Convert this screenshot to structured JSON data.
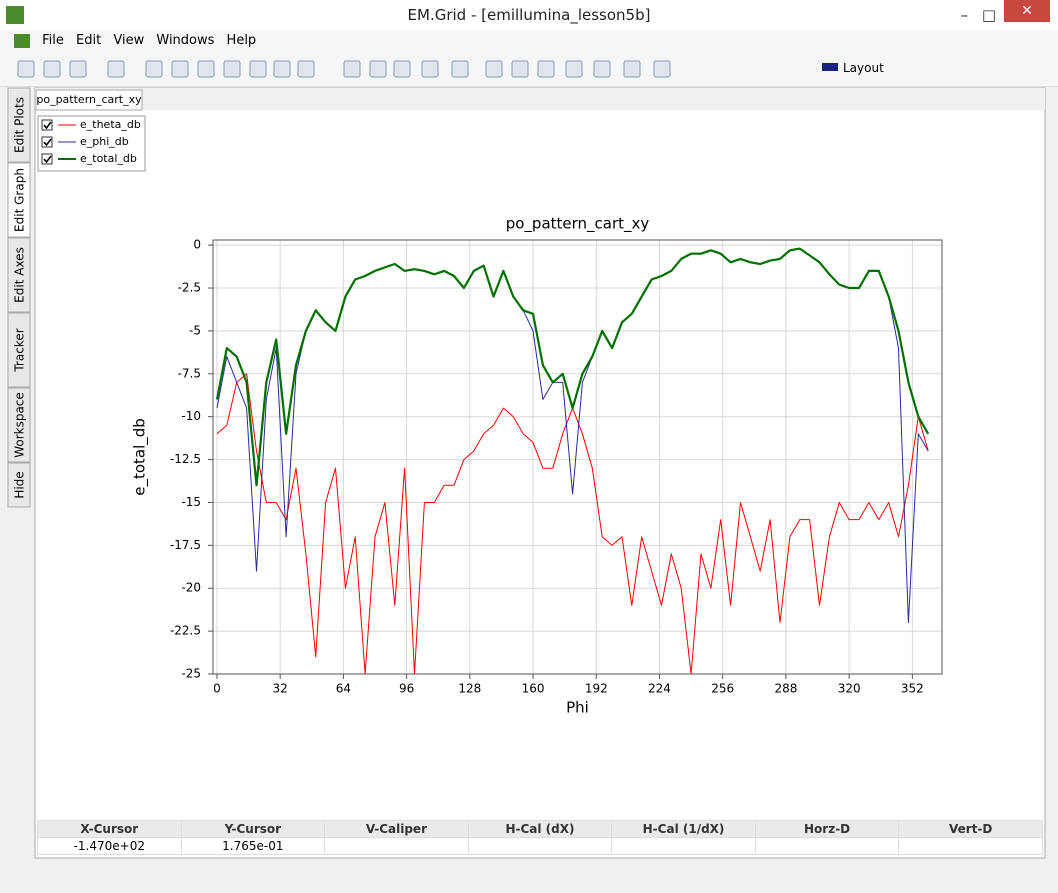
{
  "window": {
    "title": "EM.Grid - [emillumina_lesson5b]"
  },
  "menu": [
    "File",
    "Edit",
    "View",
    "Windows",
    "Help"
  ],
  "toolbar": {
    "layout": "Layout"
  },
  "side_tabs": [
    "Edit Plots",
    "Edit Graph",
    "Edit Axes",
    "Tracker",
    "Workspace",
    "Hide"
  ],
  "doc_tab": "po_pattern_cart_xy",
  "status": {
    "headers": [
      "X-Cursor",
      "Y-Cursor",
      "V-Caliper",
      "H-Cal (dX)",
      "H-Cal (1/dX)",
      "Horz-D",
      "Vert-D"
    ],
    "values": [
      "-1.470e+02",
      "1.765e-01"
    ]
  },
  "chart_data": {
    "type": "line",
    "title": "po_pattern_cart_xy",
    "x_label": "Phi",
    "y_label": "e_total_db",
    "xlim": [
      -2,
      367
    ],
    "ylim": [
      -25,
      0.3
    ],
    "xticks": [
      0,
      32,
      64,
      96,
      128,
      160,
      192,
      224,
      256,
      288,
      320,
      352
    ],
    "yticks": [
      0,
      -2.5,
      -5,
      -7.5,
      -10,
      -12.5,
      -15,
      -17.5,
      -20,
      -22.5,
      -25
    ],
    "grid": true,
    "legend": "top-left",
    "x": [
      0,
      5,
      10,
      15,
      20,
      25,
      30,
      35,
      40,
      45,
      50,
      55,
      60,
      65,
      70,
      75,
      80,
      85,
      90,
      95,
      100,
      105,
      110,
      115,
      120,
      125,
      130,
      135,
      140,
      145,
      150,
      155,
      160,
      165,
      170,
      175,
      180,
      185,
      190,
      195,
      200,
      205,
      210,
      215,
      220,
      225,
      230,
      235,
      240,
      245,
      250,
      255,
      260,
      265,
      270,
      275,
      280,
      285,
      290,
      295,
      300,
      305,
      310,
      315,
      320,
      325,
      330,
      335,
      340,
      345,
      350,
      355,
      360
    ],
    "series": [
      {
        "name": "e_theta_db",
        "color": "#ff0000",
        "values": [
          -11,
          -10.5,
          -8,
          -7.5,
          -12,
          -15,
          -15,
          -16,
          -13,
          -18,
          -24,
          -15,
          -13,
          -20,
          -17,
          -25,
          -17,
          -15,
          -21,
          -13,
          -25,
          -15,
          -15,
          -14,
          -14,
          -12.5,
          -12,
          -11,
          -10.5,
          -9.5,
          -10,
          -11,
          -11.5,
          -13,
          -13,
          -11,
          -9.5,
          -11,
          -13,
          -17,
          -17.5,
          -17,
          -21,
          -17,
          -19,
          -21,
          -18,
          -20,
          -25,
          -18,
          -20,
          -16,
          -21,
          -15,
          -17,
          -19,
          -16,
          -22,
          -17,
          -16,
          -16,
          -21,
          -17,
          -15,
          -16,
          -16,
          -15,
          -16,
          -15,
          -17,
          -14,
          -10,
          -12
        ]
      },
      {
        "name": "e_phi_db",
        "color": "#2b2b9a",
        "values": [
          -9.5,
          -6.5,
          -8,
          -9.5,
          -19,
          -9,
          -6,
          -17,
          -7.5,
          -5,
          -3.8,
          -4.5,
          -5,
          -3,
          -2,
          -1.8,
          -1.5,
          -1.3,
          -1.1,
          -1.5,
          -1.4,
          -1.5,
          -1.7,
          -1.5,
          -1.8,
          -2.5,
          -1.5,
          -1.2,
          -3,
          -1.5,
          -3,
          -3.8,
          -5,
          -9,
          -8,
          -8,
          -14.5,
          -8,
          -6.5,
          -5,
          -6,
          -4.5,
          -4,
          -3,
          -2,
          -1.8,
          -1.5,
          -0.8,
          -0.5,
          -0.5,
          -0.3,
          -0.5,
          -1,
          -0.8,
          -1,
          -1.1,
          -0.9,
          -0.8,
          -0.3,
          -0.2,
          -0.6,
          -1,
          -1.7,
          -2.3,
          -2.5,
          -2.5,
          -1.5,
          -1.5,
          -3,
          -6,
          -22,
          -11,
          -12
        ]
      },
      {
        "name": "e_total_db",
        "color": "#007000",
        "values": [
          -9,
          -6,
          -6.5,
          -8,
          -14,
          -8,
          -5.5,
          -11,
          -7,
          -5,
          -3.8,
          -4.5,
          -5,
          -3,
          -2,
          -1.8,
          -1.5,
          -1.3,
          -1.1,
          -1.5,
          -1.4,
          -1.5,
          -1.7,
          -1.5,
          -1.8,
          -2.5,
          -1.5,
          -1.2,
          -3,
          -1.5,
          -3,
          -3.8,
          -4,
          -7,
          -8,
          -7.5,
          -9.5,
          -7.5,
          -6.5,
          -5,
          -6,
          -4.5,
          -4,
          -3,
          -2,
          -1.8,
          -1.5,
          -0.8,
          -0.5,
          -0.5,
          -0.3,
          -0.5,
          -1,
          -0.8,
          -1,
          -1.1,
          -0.9,
          -0.8,
          -0.3,
          -0.2,
          -0.6,
          -1,
          -1.7,
          -2.3,
          -2.5,
          -2.5,
          -1.5,
          -1.5,
          -3,
          -5,
          -8,
          -10,
          -11
        ]
      }
    ]
  }
}
